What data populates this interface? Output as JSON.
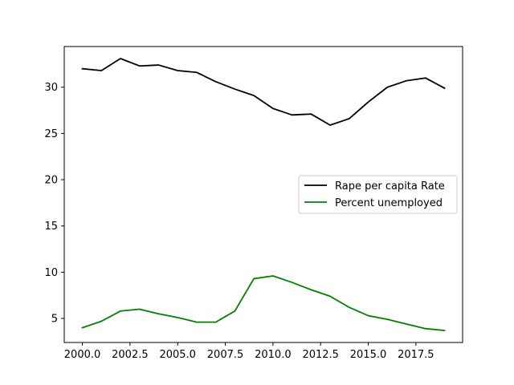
{
  "chart_data": {
    "type": "line",
    "title": "",
    "xlabel": "",
    "ylabel": "",
    "xlim": [
      1999.05,
      2019.95
    ],
    "ylim": [
      2.4,
      34.4
    ],
    "xticks": [
      2000.0,
      2002.5,
      2005.0,
      2007.5,
      2010.0,
      2012.5,
      2015.0,
      2017.5
    ],
    "xtick_labels": [
      "2000.0",
      "2002.5",
      "2005.0",
      "2007.5",
      "2010.0",
      "2012.5",
      "2015.0",
      "2017.5"
    ],
    "yticks": [
      5,
      10,
      15,
      20,
      25,
      30
    ],
    "ytick_labels": [
      "5",
      "10",
      "15",
      "20",
      "25",
      "30"
    ],
    "grid": false,
    "legend_position": "center-right",
    "x": [
      2000,
      2001,
      2002,
      2003,
      2004,
      2005,
      2006,
      2007,
      2008,
      2009,
      2010,
      2011,
      2012,
      2013,
      2014,
      2015,
      2016,
      2017,
      2018,
      2019
    ],
    "series": [
      {
        "name": "Rape per capita Rate",
        "color": "#000000",
        "values": [
          32.0,
          31.8,
          33.1,
          32.3,
          32.4,
          31.8,
          31.6,
          30.6,
          29.8,
          29.1,
          27.7,
          27.0,
          27.1,
          25.9,
          26.6,
          28.4,
          30.0,
          30.7,
          31.0,
          29.9
        ]
      },
      {
        "name": "Percent unemployed",
        "color": "#008000",
        "values": [
          4.0,
          4.7,
          5.8,
          6.0,
          5.5,
          5.1,
          4.6,
          4.6,
          5.8,
          9.3,
          9.6,
          8.9,
          8.1,
          7.4,
          6.2,
          5.3,
          4.9,
          4.4,
          3.9,
          3.7
        ]
      }
    ]
  }
}
